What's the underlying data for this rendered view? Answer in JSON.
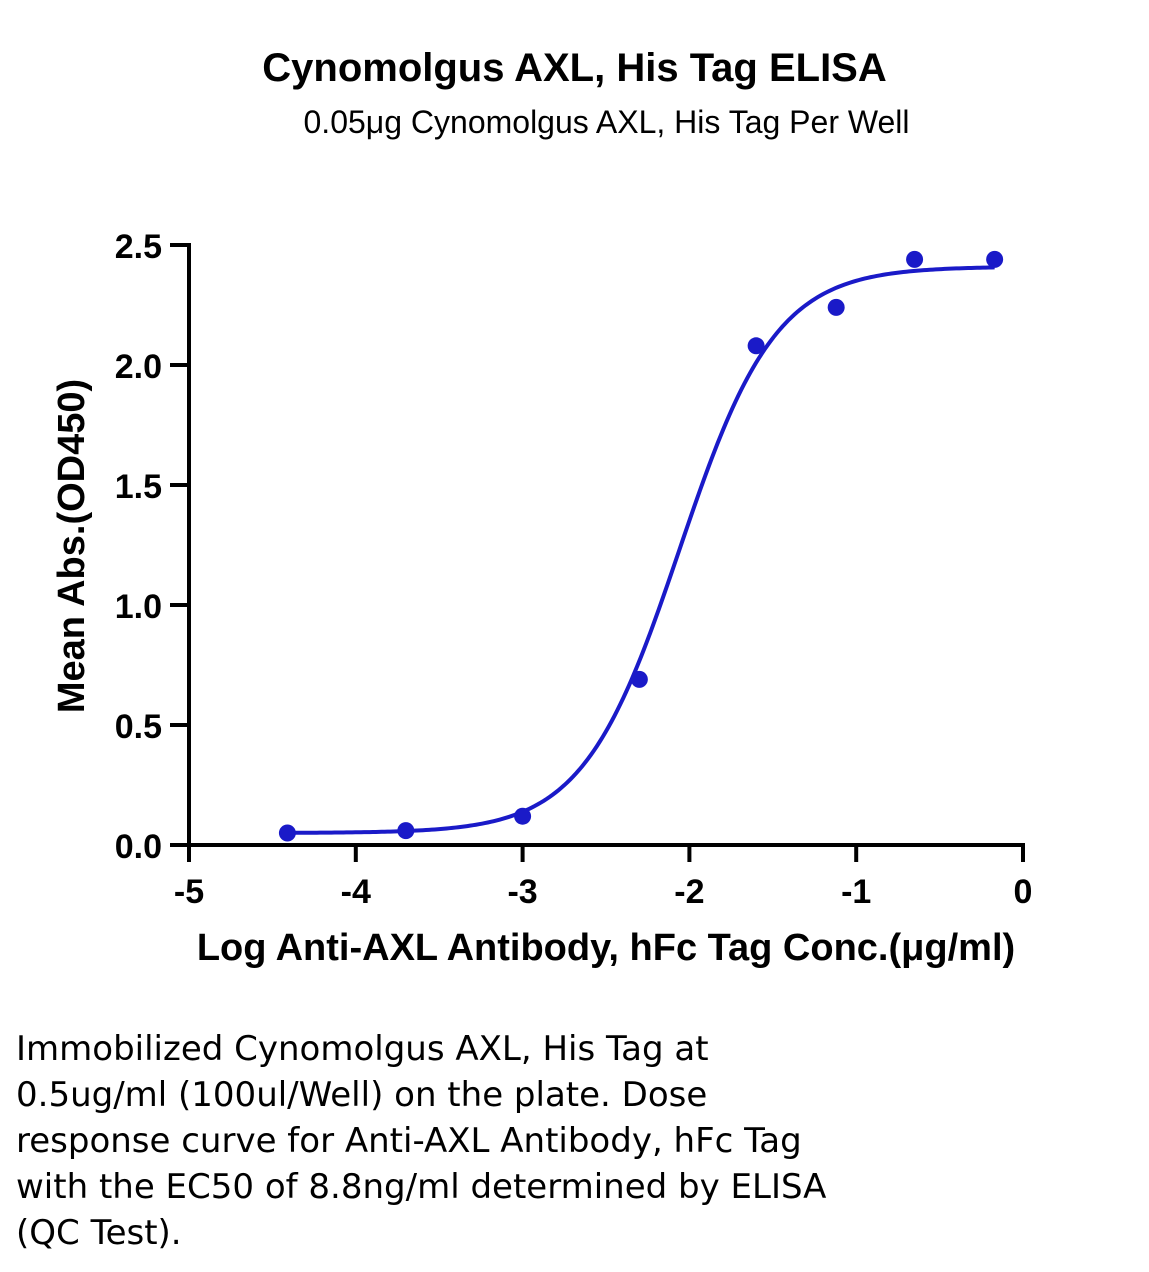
{
  "chart_data": {
    "type": "scatter",
    "title": "Cynomolgus AXL, His Tag ELISA",
    "subtitle": "0.05μg Cynomolgus AXL, His Tag Per Well",
    "xlabel": "Log Anti-AXL Antibody, hFc Tag Conc.(μg/ml)",
    "ylabel": "Mean Abs.(OD450)",
    "xlim": [
      -5,
      0
    ],
    "ylim": [
      0,
      2.5
    ],
    "x_ticks": [
      "-5",
      "-4",
      "-3",
      "-2",
      "-1",
      "0"
    ],
    "y_ticks": [
      "0.0",
      "0.5",
      "1.0",
      "1.5",
      "2.0",
      "2.5"
    ],
    "grid": false,
    "legend": "none",
    "series": [
      {
        "x": [
          -4.41,
          -3.7,
          -3.0,
          -2.3,
          -1.6,
          -1.12,
          -0.65,
          -0.17
        ],
        "y": [
          0.05,
          0.06,
          0.12,
          0.69,
          2.08,
          2.24,
          2.44,
          2.44
        ],
        "color": "#1a1ac8",
        "fit": {
          "model": "4PL",
          "bottom": 0.05,
          "top": 2.41,
          "logEC50": -2.06,
          "hill": 1.5,
          "x_range": [
            -4.41,
            -0.17
          ]
        }
      }
    ]
  },
  "caption_lines": [
    "Immobilized Cynomolgus AXL, His Tag at",
    "0.5ug/ml (100ul/Well) on the plate. Dose",
    "response curve for Anti-AXL Antibody, hFc Tag",
    "with the EC50 of 8.8ng/ml determined by ELISA",
    "(QC Test)."
  ]
}
